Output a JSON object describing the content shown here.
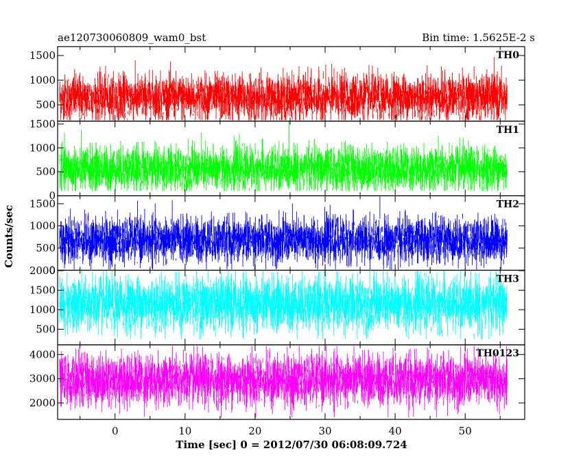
{
  "header": {
    "left_title": "ae120730060809_wam0_bst",
    "right_title": "Bin time: 1.5625E-2 s"
  },
  "x_axis": {
    "label": "Time [sec] 0 = 2012/07/30 06:08:09.724",
    "range": [
      -8.2,
      58.5
    ],
    "ticks": [
      0,
      10,
      20,
      30,
      40,
      50
    ]
  },
  "y_axis": {
    "label": "Counts/sec"
  },
  "chart_data": {
    "type": "line",
    "x_range": [
      -8.2,
      58.5
    ],
    "data_x_range": [
      -7.9,
      56.0
    ],
    "bin_time_s": 0.015625,
    "grid": false,
    "legend": "none",
    "panels": [
      {
        "name": "TH0",
        "color": "#ff0000",
        "ylim": [
          170,
          1680
        ],
        "yticks": [
          500,
          1000,
          1500
        ],
        "yticklabels": [
          "500",
          "1000",
          "1500"
        ],
        "mean": 650,
        "spread": 230,
        "min": 190,
        "max": 1640
      },
      {
        "name": "TH1",
        "color": "#00ff00",
        "ylim": [
          0,
          1560
        ],
        "yticks": [
          0,
          500,
          1000,
          1500
        ],
        "yticklabels": [
          "0",
          "500",
          "1000",
          "1500"
        ],
        "mean": 560,
        "spread": 230,
        "min": 100,
        "max": 1550
      },
      {
        "name": "TH2",
        "color": "#0000ff",
        "ylim": [
          0,
          1680
        ],
        "yticks": [
          0,
          500,
          1000,
          1500
        ],
        "yticklabels": [
          "0",
          "500",
          "1000",
          "1500"
        ],
        "mean": 680,
        "spread": 250,
        "min": 20,
        "max": 1670
      },
      {
        "name": "TH3",
        "color": "#00ffff",
        "ylim": [
          100,
          2010
        ],
        "yticks": [
          500,
          1000,
          1500,
          2000
        ],
        "yticklabels": [
          "500",
          "1000",
          "1500",
          "2000"
        ],
        "mean": 1150,
        "spread": 340,
        "min": 250,
        "max": 2000
      },
      {
        "name": "TH0123",
        "color": "#ff00ff",
        "ylim": [
          1320,
          4400
        ],
        "yticks": [
          2000,
          3000,
          4000
        ],
        "yticklabels": [
          "2000",
          "3000",
          "4000"
        ],
        "mean": 2950,
        "spread": 520,
        "min": 1400,
        "max": 4350
      }
    ]
  }
}
